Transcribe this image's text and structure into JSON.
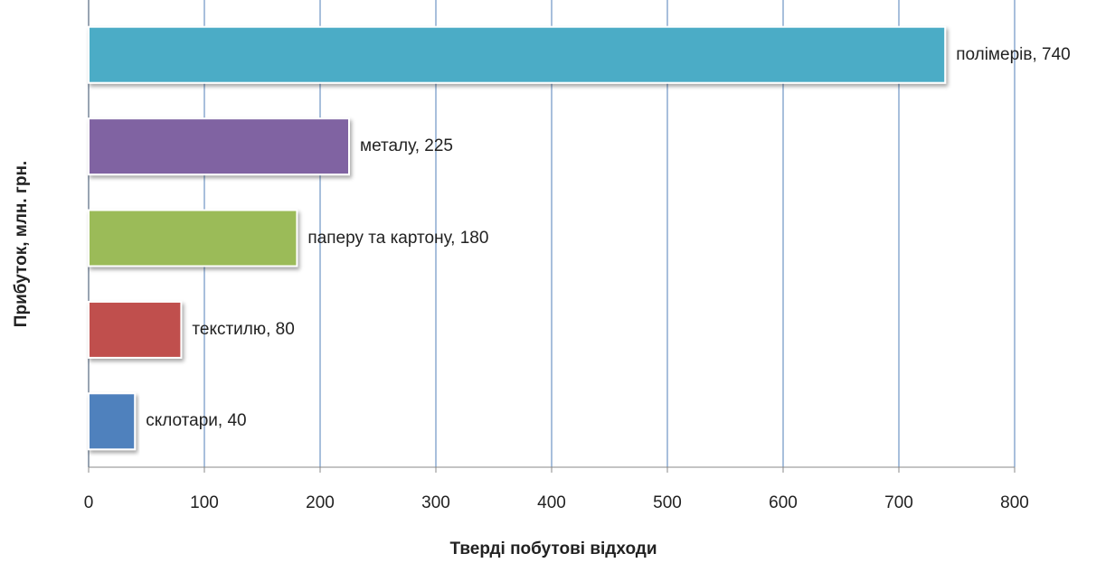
{
  "chart_data": {
    "type": "barh",
    "xlabel": "Тверді побутові відходи",
    "ylabel": "Прибуток, млн. грн.",
    "categories": [
      "склотари",
      "текстилю",
      "паперу та картону",
      "металу",
      "полімерів"
    ],
    "values": [
      40,
      80,
      180,
      225,
      740
    ],
    "value_labels": [
      "склотари, 40",
      "текстилю, 80",
      "паперу та картону, 180",
      "металу, 225",
      "полімерів, 740"
    ],
    "colors": [
      "#4f81bd",
      "#c0504d",
      "#9bbb59",
      "#8064a2",
      "#4bacc6"
    ],
    "xlim": [
      0,
      800
    ],
    "xticks": [
      0,
      100,
      200,
      300,
      400,
      500,
      600,
      700,
      800
    ],
    "grid": true
  }
}
